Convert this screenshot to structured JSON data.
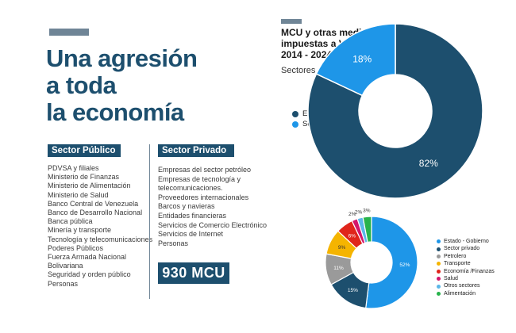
{
  "headline": [
    "Una agresión",
    "a toda",
    "la economía"
  ],
  "public_sector": {
    "heading": "Sector Público",
    "items": [
      "PDVSA y filiales",
      "Ministerio de Finanzas",
      "Ministerio de Alimentación",
      "Ministerio de Salud",
      "Banco Central de Venezuela",
      "Banco de Desarrollo Nacional",
      "Banca pública",
      "Minería y transporte",
      "Tecnología y telecomunicaciones",
      "Poderes Públicos",
      "Fuerza Armada Nacional",
      "Bolivariana",
      "Seguridad y orden público",
      "Personas"
    ]
  },
  "private_sector": {
    "heading": "Sector Privado",
    "items": [
      "Empresas del sector petróleo",
      "Empresas de tecnología y",
      "telecomunicaciones.",
      "Proveedores internacionales",
      "Barcos y navieras",
      "Entidades financieras",
      "Servicios de Comercio Electrónico",
      "Servicios de Internet",
      "Personas"
    ]
  },
  "total_badge": "930 MCU",
  "chart_title_lines": [
    "MCU y otras medidas",
    "impuestas a Venezuela",
    "2014 - 2024."
  ],
  "chart_subtitle": "Sectores afectados (%)",
  "colors": {
    "accent_dark": "#1d4f6e",
    "gray_bar": "#6f8596"
  },
  "chart_data": [
    {
      "type": "pie",
      "donut": true,
      "categories": [
        "Estado - Gob.",
        "Sector privado"
      ],
      "values": [
        82,
        18
      ],
      "labels": [
        "82%",
        "18%"
      ],
      "colors": [
        "#1d4f6e",
        "#1e96e8"
      ],
      "legend_position": "left"
    },
    {
      "type": "pie",
      "donut": true,
      "categories": [
        "Estado - Gobierno",
        "Sector privado",
        "Petrolero",
        "Transporte",
        "Economía /Finanzas",
        "Salud",
        "Otros sectores",
        "Alimentación"
      ],
      "values": [
        52,
        15,
        11,
        9,
        6,
        2,
        2,
        3
      ],
      "labels": [
        "52%",
        "15%",
        "11%",
        "9%",
        "6%",
        "2%",
        "2%",
        "3%"
      ],
      "colors": [
        "#1e96e8",
        "#1d4f6e",
        "#9a9a9a",
        "#f5b400",
        "#e0251b",
        "#d4166b",
        "#5bb7e8",
        "#27b34b"
      ],
      "legend_position": "right"
    }
  ]
}
